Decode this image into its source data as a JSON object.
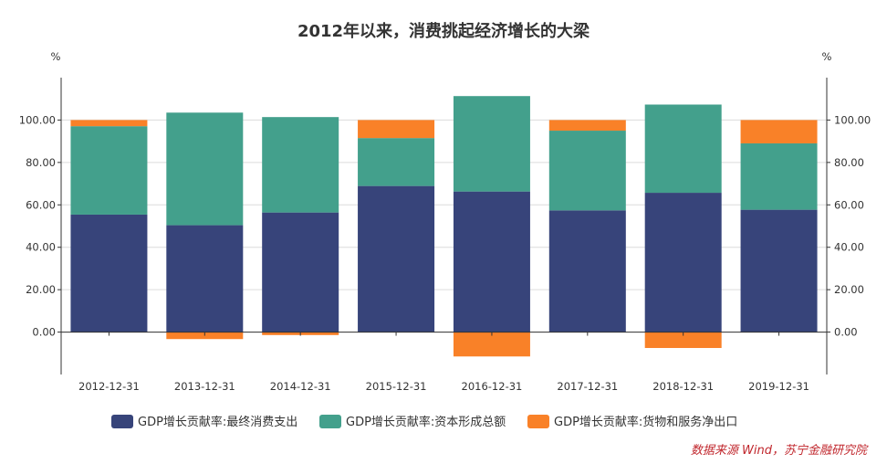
{
  "chart_data": {
    "type": "bar",
    "stacked": true,
    "title": "2012年以来，消费挑起经济增长的大梁",
    "ylabel_left": "%",
    "ylabel_right": "%",
    "ylim": [
      -20,
      120
    ],
    "yticks": [
      0,
      20,
      40,
      60,
      80,
      100
    ],
    "ytick_labels": [
      "0.00",
      "20.00",
      "40.00",
      "60.00",
      "80.00",
      "100.00"
    ],
    "grid": true,
    "legend_position": "bottom",
    "categories": [
      "2012-12-31",
      "2013-12-31",
      "2014-12-31",
      "2015-12-31",
      "2016-12-31",
      "2017-12-31",
      "2018-12-31",
      "2019-12-31"
    ],
    "series": [
      {
        "name": "GDP增长贡献率:最终消费支出",
        "color": "#37447a",
        "values": [
          55.4,
          50.4,
          56.4,
          68.9,
          66.3,
          57.4,
          65.7,
          57.7
        ]
      },
      {
        "name": "GDP增长贡献率:资本形成总额",
        "color": "#43a08c",
        "values": [
          41.7,
          53.1,
          45.0,
          22.6,
          45.0,
          37.6,
          41.6,
          31.3
        ]
      },
      {
        "name": "GDP增长贡献率:货物和服务净出口",
        "color": "#f98128",
        "values": [
          2.9,
          -3.3,
          -1.4,
          8.5,
          -11.5,
          5.0,
          -7.5,
          11.0
        ]
      }
    ]
  },
  "source": "数据来源 Wind，苏宁金融研究院"
}
